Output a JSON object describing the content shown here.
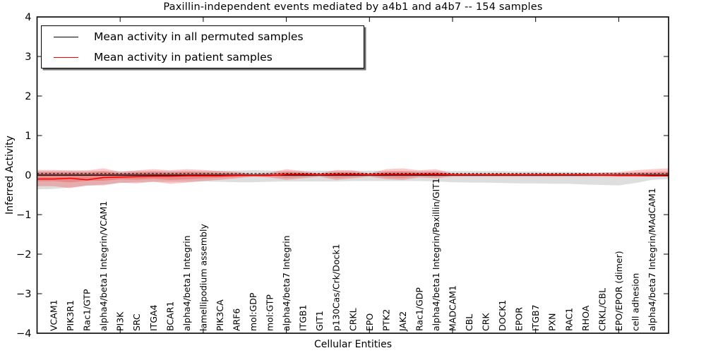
{
  "figure": {
    "title": "Paxillin-independent events mediated by a4b1 and a4b7 -- 154 samples",
    "xlabel": "Cellular Entities",
    "ylabel": "Inferred Activity",
    "legend": [
      {
        "label": "Mean activity in all permuted samples",
        "color": "#000000"
      },
      {
        "label": "Mean activity in patient samples",
        "color": "#ff0000"
      }
    ]
  },
  "chart_data": {
    "type": "line",
    "title": "Paxillin-independent events mediated by a4b1 and a4b7 -- 154 samples",
    "xlabel": "Cellular Entities",
    "ylabel": "Inferred Activity",
    "ylim": [
      -4,
      4
    ],
    "yticks": [
      4,
      3,
      2,
      1,
      0,
      -1,
      -2,
      -3,
      -4
    ],
    "xtick_units": [
      5,
      10,
      15,
      20,
      25,
      30,
      35
    ],
    "grid": false,
    "legend_position": "upper left",
    "categories": [
      "VCAM1",
      "PIK3R1",
      "Rac1/GTP",
      "alpha4/beta1 Integrin/VCAM1",
      "PI3K",
      "SRC",
      "ITGA4",
      "BCAR1",
      "alpha4/beta1 Integrin",
      "lamellipodium assembly",
      "PIK3CA",
      "ARF6",
      "mol:GDP",
      "mol:GTP",
      "alpha4/beta7 Integrin",
      "ITGB1",
      "GIT1",
      "p130Cas/Crk/Dock1",
      "CRKL",
      "EPO",
      "PTK2",
      "JAK2",
      "Rac1/GDP",
      "alpha4/beta1 Integrin/Paxillin/GIT1",
      "MADCAM1",
      "CBL",
      "CRK",
      "DOCK1",
      "EPOR",
      "ITGB7",
      "PXN",
      "RAC1",
      "RHOA",
      "CRKL/CBL",
      "EPO/EPOR (dimer)",
      "cell adhesion",
      "alpha4/beta7 Integrin/MAdCAM1"
    ],
    "series": [
      {
        "name": "Mean activity in all permuted samples",
        "color": "#000000",
        "style": "solid",
        "edge_left": 0,
        "edge_right": 0,
        "values": [
          0,
          0,
          0,
          0,
          0,
          0,
          0,
          0,
          0,
          0,
          0,
          0,
          0,
          0,
          0,
          0,
          0,
          0,
          0,
          0,
          0,
          0,
          0,
          0,
          0,
          0,
          0,
          0,
          0,
          0,
          0,
          0,
          0,
          0,
          0,
          0,
          0
        ]
      },
      {
        "name": "Mean activity in patient samples",
        "color": "#ff0000",
        "style": "solid",
        "edge_left": -0.1,
        "edge_right": -0.02,
        "values": [
          -0.1,
          -0.08,
          -0.12,
          -0.06,
          -0.05,
          -0.04,
          -0.03,
          -0.03,
          -0.02,
          -0.02,
          -0.02,
          -0.01,
          -0.01,
          -0.01,
          0.02,
          0.02,
          0.01,
          0.02,
          0.02,
          0.01,
          0.02,
          0.02,
          0.02,
          0.02,
          0.01,
          0.01,
          0.01,
          0.01,
          0.01,
          0.01,
          0.01,
          0.01,
          0.01,
          0.0,
          -0.01,
          -0.01,
          -0.02
        ]
      }
    ],
    "bands": [
      {
        "name": "permuted samples spread",
        "color": "rgba(0,0,0,0.13)",
        "edge_left_upper": 0.1,
        "edge_left_lower": -0.36,
        "edge_right_upper": 0.07,
        "edge_right_lower": -0.1,
        "upper": [
          0.1,
          0.1,
          0.1,
          0.1,
          0.1,
          0.1,
          0.1,
          0.1,
          0.1,
          0.1,
          0.11,
          0.11,
          0.12,
          0.11,
          0.1,
          0.1,
          0.11,
          0.1,
          0.1,
          0.11,
          0.1,
          0.1,
          0.1,
          0.1,
          0.1,
          0.1,
          0.1,
          0.1,
          0.09,
          0.09,
          0.08,
          0.08,
          0.07,
          0.07,
          0.06,
          0.06,
          0.06
        ],
        "lower": [
          -0.35,
          -0.31,
          -0.27,
          -0.24,
          -0.2,
          -0.18,
          -0.17,
          -0.17,
          -0.17,
          -0.16,
          -0.17,
          -0.18,
          -0.18,
          -0.17,
          -0.16,
          -0.16,
          -0.16,
          -0.16,
          -0.15,
          -0.15,
          -0.15,
          -0.15,
          -0.15,
          -0.16,
          -0.18,
          -0.19,
          -0.19,
          -0.2,
          -0.21,
          -0.21,
          -0.22,
          -0.22,
          -0.24,
          -0.25,
          -0.26,
          -0.2,
          -0.12
        ]
      },
      {
        "name": "patient samples spread",
        "color": "rgba(255,0,0,0.22)",
        "edge_left_upper": 0.13,
        "edge_left_lower": -0.28,
        "edge_right_upper": 0.17,
        "edge_right_lower": -0.02,
        "upper": [
          0.13,
          0.12,
          0.12,
          0.17,
          0.08,
          0.12,
          0.15,
          0.12,
          0.15,
          0.13,
          0.1,
          0.08,
          0.03,
          0.06,
          0.15,
          0.1,
          0.04,
          0.13,
          0.12,
          0.04,
          0.15,
          0.17,
          0.12,
          0.15,
          0.04,
          0.03,
          0.03,
          0.04,
          0.03,
          0.03,
          0.04,
          0.03,
          0.04,
          0.06,
          0.08,
          0.12,
          0.15
        ],
        "lower": [
          -0.28,
          -0.33,
          -0.26,
          -0.26,
          -0.19,
          -0.21,
          -0.17,
          -0.22,
          -0.19,
          -0.15,
          -0.12,
          -0.08,
          -0.04,
          -0.06,
          -0.12,
          -0.08,
          -0.04,
          -0.12,
          -0.08,
          -0.04,
          -0.1,
          -0.12,
          -0.06,
          -0.08,
          -0.04,
          -0.04,
          -0.04,
          -0.04,
          -0.04,
          -0.04,
          -0.04,
          -0.04,
          -0.04,
          -0.04,
          -0.04,
          -0.04,
          -0.03
        ]
      }
    ]
  }
}
